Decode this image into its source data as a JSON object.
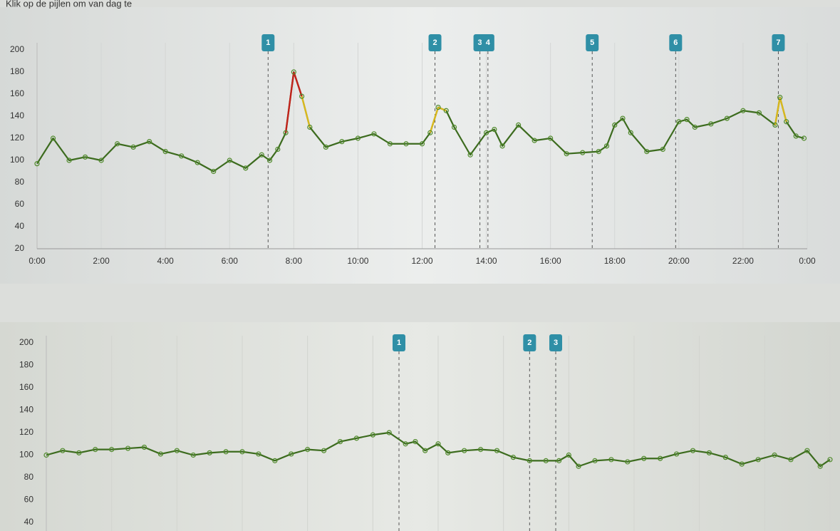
{
  "header": {
    "text": "Klik op de pijlen om van dag te"
  },
  "chart_data": [
    {
      "type": "line",
      "x": [
        0,
        0.5,
        1,
        1.5,
        2,
        2.5,
        3,
        3.5,
        4,
        4.5,
        5,
        5.5,
        6,
        6.5,
        7,
        7.25,
        7.5,
        7.75,
        8,
        8.25,
        8.5,
        9,
        9.5,
        10,
        10.5,
        11,
        11.5,
        12,
        12.25,
        12.5,
        12.75,
        13,
        13.5,
        14,
        14.25,
        14.5,
        15,
        15.5,
        16,
        16.5,
        17,
        17.5,
        17.75,
        18,
        18.25,
        18.5,
        19,
        19.5,
        20,
        20.25,
        20.5,
        21,
        21.5,
        22,
        22.5,
        23,
        23.15,
        23.35,
        23.65,
        23.9
      ],
      "series": [
        {
          "name": "glucose",
          "color": "#3c6b1e",
          "values": [
            97,
            120,
            100,
            103,
            100,
            115,
            112,
            117,
            108,
            104,
            98,
            90,
            100,
            93,
            105,
            100,
            110,
            125,
            180,
            158,
            130,
            112,
            117,
            120,
            124,
            115,
            115,
            115,
            125,
            148,
            145,
            130,
            105,
            125,
            128,
            113,
            132,
            118,
            120,
            106,
            107,
            108,
            113,
            132,
            138,
            125,
            108,
            110,
            135,
            137,
            130,
            133,
            138,
            145,
            143,
            132,
            157,
            135,
            122,
            120
          ]
        }
      ],
      "color_bands": [
        {
          "above": 165,
          "color": "#c0221a"
        },
        {
          "above": 147,
          "color": "#d9b81e"
        }
      ],
      "xlim": [
        0,
        24
      ],
      "xticks": [
        {
          "value": 0,
          "label": "0:00"
        },
        {
          "value": 2,
          "label": "2:00"
        },
        {
          "value": 4,
          "label": "4:00"
        },
        {
          "value": 6,
          "label": "6:00"
        },
        {
          "value": 8,
          "label": "8:00"
        },
        {
          "value": 10,
          "label": "10:00"
        },
        {
          "value": 12,
          "label": "12:00"
        },
        {
          "value": 14,
          "label": "14:00"
        },
        {
          "value": 16,
          "label": "16:00"
        },
        {
          "value": 18,
          "label": "18:00"
        },
        {
          "value": 20,
          "label": "20:00"
        },
        {
          "value": 22,
          "label": "22:00"
        },
        {
          "value": 24,
          "label": "0:00"
        }
      ],
      "ylim": [
        20,
        200
      ],
      "yticks": [
        20,
        40,
        60,
        80,
        100,
        120,
        140,
        160,
        180,
        200
      ],
      "markers": [
        {
          "label": "1",
          "x": 7.2
        },
        {
          "label": "2",
          "x": 12.4
        },
        {
          "label": "3",
          "x": 13.8
        },
        {
          "label": "4",
          "x": 14.05
        },
        {
          "label": "5",
          "x": 17.3
        },
        {
          "label": "6",
          "x": 19.9
        },
        {
          "label": "7",
          "x": 23.1
        }
      ],
      "grid": true
    },
    {
      "type": "line",
      "x": [
        0,
        0.5,
        1,
        1.5,
        2,
        2.5,
        3,
        3.5,
        4,
        4.5,
        5,
        5.5,
        6,
        6.5,
        7,
        7.5,
        8,
        8.5,
        9,
        9.5,
        10,
        10.5,
        11,
        11.3,
        11.6,
        12,
        12.3,
        12.8,
        13.3,
        13.8,
        14.3,
        14.8,
        15.3,
        15.7,
        16,
        16.3,
        16.8,
        17.3,
        17.8,
        18.3,
        18.8,
        19.3,
        19.8,
        20.3,
        20.8,
        21.3,
        21.8,
        22.3,
        22.8,
        23.3,
        23.7,
        24
      ],
      "series": [
        {
          "name": "glucose",
          "color": "#3c6b1e",
          "values": [
            100,
            104,
            102,
            105,
            105,
            106,
            107,
            101,
            104,
            100,
            102,
            103,
            103,
            101,
            95,
            101,
            105,
            104,
            112,
            115,
            118,
            120,
            110,
            112,
            104,
            110,
            102,
            104,
            105,
            104,
            98,
            95,
            95,
            95,
            100,
            90,
            95,
            96,
            94,
            97,
            97,
            101,
            104,
            102,
            98,
            92,
            96,
            100,
            96,
            104,
            90,
            96
          ]
        }
      ],
      "xlim": [
        0,
        24
      ],
      "ylim": [
        20,
        200
      ],
      "yticks": [
        40,
        60,
        80,
        100,
        120,
        140,
        160,
        180,
        200
      ],
      "markers": [
        {
          "label": "1",
          "x": 10.8
        },
        {
          "label": "2",
          "x": 14.8
        },
        {
          "label": "3",
          "x": 15.6
        }
      ],
      "grid": true
    }
  ]
}
